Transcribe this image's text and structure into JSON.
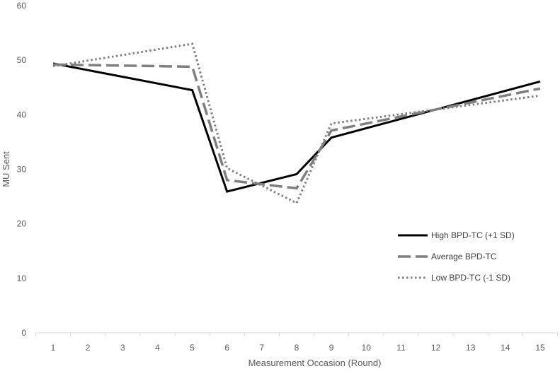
{
  "chart_data": {
    "type": "line",
    "xlabel": "Measurement Occasion (Round)",
    "ylabel": "MU Sent",
    "ylim": [
      0,
      60
    ],
    "yticks": [
      0,
      10,
      20,
      30,
      40,
      50,
      60
    ],
    "x": [
      1,
      2,
      3,
      4,
      5,
      6,
      7,
      8,
      9,
      10,
      11,
      12,
      13,
      14,
      15
    ],
    "grid": false,
    "legend_position": "bottom-right",
    "series": [
      {
        "name": "High BPD-TC (+1 SD)",
        "style": "solid",
        "color": "#000000",
        "x": [
          1,
          5,
          6,
          8,
          9,
          15
        ],
        "values": [
          49.4,
          44.5,
          25.9,
          29.1,
          35.8,
          46.1
        ]
      },
      {
        "name": "Average BPD-TC",
        "style": "dashed",
        "color": "#7f7f7f",
        "x": [
          1,
          5,
          6,
          8,
          9,
          15
        ],
        "values": [
          49.2,
          48.8,
          28.0,
          26.5,
          37.1,
          44.8
        ]
      },
      {
        "name": "Low BPD-TC  (-1 SD)",
        "style": "dotted",
        "color": "#7f7f7f",
        "x": [
          1,
          5,
          6,
          8,
          9,
          15
        ],
        "values": [
          48.9,
          53.0,
          30.2,
          23.8,
          38.4,
          43.5
        ]
      }
    ]
  }
}
